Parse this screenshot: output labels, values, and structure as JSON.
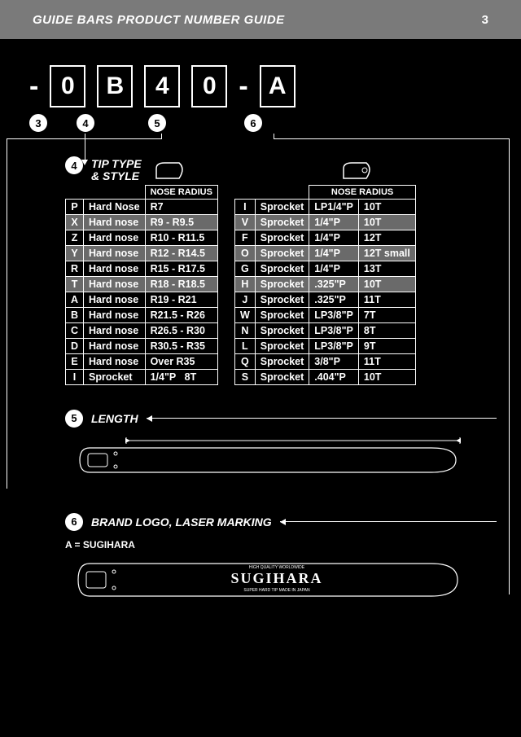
{
  "header": {
    "title": "GUIDE BARS PRODUCT NUMBER GUIDE",
    "page": "3"
  },
  "code": {
    "chars": [
      "0",
      "B",
      "4",
      "0",
      "A"
    ],
    "labels": [
      "3",
      "4",
      "5",
      "6"
    ]
  },
  "section4": {
    "title_l1": "TIP TYPE",
    "title_l2": "& STYLE",
    "col_header": "NOSE RADIUS",
    "table1": [
      {
        "c": "P",
        "t": "Hard Nose",
        "r": "R7",
        "s": 0
      },
      {
        "c": "X",
        "t": "Hard nose",
        "r": "R9 - R9.5",
        "s": 1
      },
      {
        "c": "Z",
        "t": "Hard nose",
        "r": "R10 - R11.5",
        "s": 0
      },
      {
        "c": "Y",
        "t": "Hard nose",
        "r": "R12 - R14.5",
        "s": 1
      },
      {
        "c": "R",
        "t": "Hard nose",
        "r": "R15 - R17.5",
        "s": 0
      },
      {
        "c": "T",
        "t": "Hard nose",
        "r": "R18 - R18.5",
        "s": 1
      },
      {
        "c": "A",
        "t": "Hard nose",
        "r": "R19 - R21",
        "s": 0
      },
      {
        "c": "B",
        "t": "Hard nose",
        "r": "R21.5 - R26",
        "s": 0
      },
      {
        "c": "C",
        "t": "Hard nose",
        "r": "R26.5 - R30",
        "s": 0
      },
      {
        "c": "D",
        "t": "Hard nose",
        "r": "R30.5 - R35",
        "s": 0
      },
      {
        "c": "E",
        "t": "Hard nose",
        "r": "Over R35",
        "s": 0
      },
      {
        "c": "I",
        "t": "Sprocket",
        "r": "1/4\"P",
        "x": "8T",
        "s": 0
      }
    ],
    "table2": [
      {
        "c": "I",
        "t": "Sprocket",
        "p": "LP1/4\"P",
        "x": "10T",
        "s": 0
      },
      {
        "c": "V",
        "t": "Sprocket",
        "p": "1/4\"P",
        "x": "10T",
        "s": 1
      },
      {
        "c": "F",
        "t": "Sprocket",
        "p": "1/4\"P",
        "x": "12T",
        "s": 0
      },
      {
        "c": "O",
        "t": "Sprocket",
        "p": "1/4\"P",
        "x": "12T small",
        "s": 1
      },
      {
        "c": "G",
        "t": "Sprocket",
        "p": "1/4\"P",
        "x": "13T",
        "s": 0
      },
      {
        "c": "H",
        "t": "Sprocket",
        "p": ".325\"P",
        "x": "10T",
        "s": 1
      },
      {
        "c": "J",
        "t": "Sprocket",
        "p": ".325\"P",
        "x": "11T",
        "s": 0
      },
      {
        "c": "W",
        "t": "Sprocket",
        "p": "LP3/8\"P",
        "x": "7T",
        "s": 0
      },
      {
        "c": "N",
        "t": "Sprocket",
        "p": "LP3/8\"P",
        "x": "8T",
        "s": 0
      },
      {
        "c": "L",
        "t": "Sprocket",
        "p": "LP3/8\"P",
        "x": "9T",
        "s": 0
      },
      {
        "c": "Q",
        "t": "Sprocket",
        "p": "3/8\"P",
        "x": "11T",
        "s": 0
      },
      {
        "c": "S",
        "t": "Sprocket",
        "p": ".404\"P",
        "x": "10T",
        "s": 0
      }
    ]
  },
  "section5": {
    "label": "5",
    "title": "LENGTH"
  },
  "section6": {
    "label": "6",
    "title": "BRAND LOGO, LASER MARKING",
    "note": "A = SUGIHARA",
    "brand": "SUGIHARA"
  }
}
